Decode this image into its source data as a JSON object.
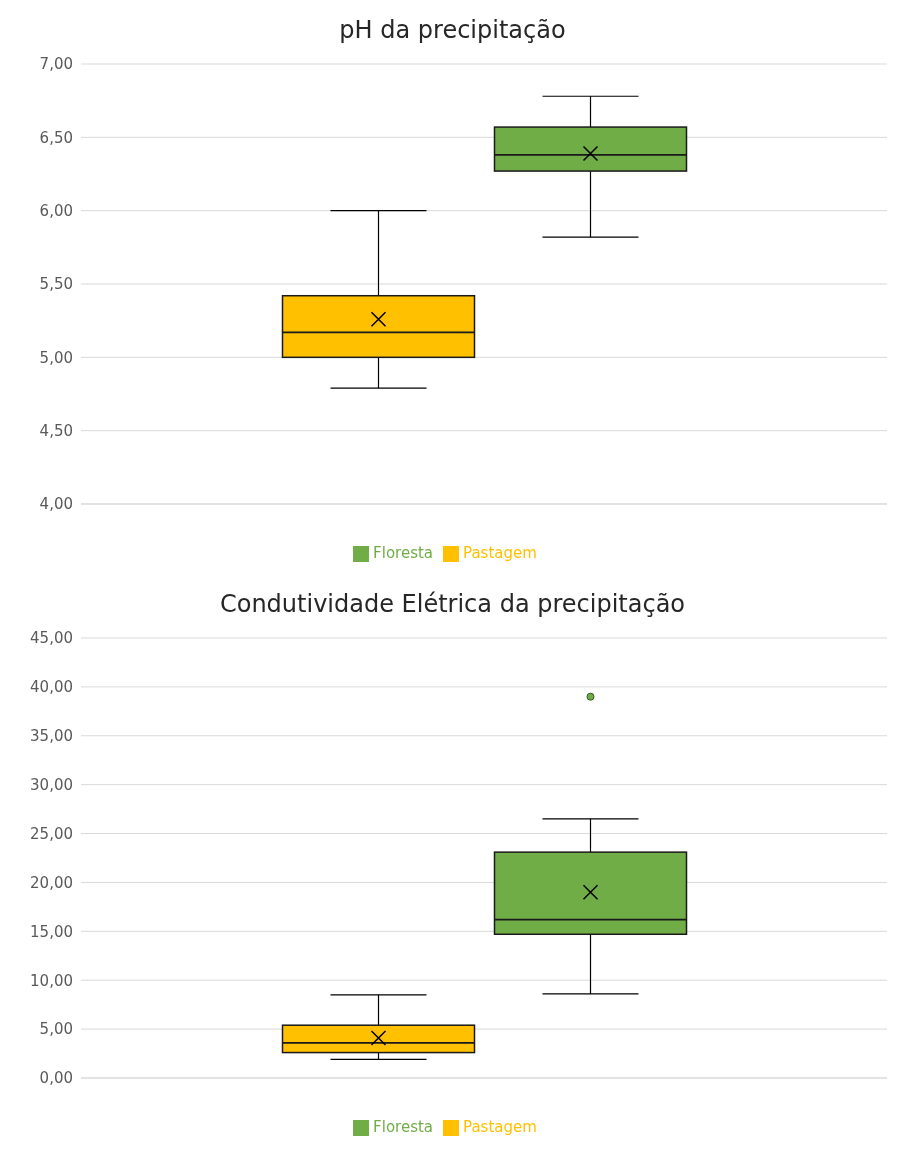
{
  "chart_data": [
    {
      "type": "box",
      "title": "pH da precipitação",
      "categories": [
        null
      ],
      "ylim": [
        4,
        7
      ],
      "yticks": [
        {
          "value": 4,
          "label": "4,00"
        },
        {
          "value": 4.5,
          "label": "4,50"
        },
        {
          "value": 5,
          "label": "5,00"
        },
        {
          "value": 5.5,
          "label": "5,50"
        },
        {
          "value": 6,
          "label": "6,00"
        },
        {
          "value": 6.5,
          "label": "6,50"
        },
        {
          "value": 7,
          "label": "7,00"
        }
      ],
      "grid": "y",
      "legend": "bottom",
      "series": [
        {
          "name": "Pastagem",
          "color": "#ffc000",
          "boxes": [
            {
              "low": 4.79,
              "q1": 5.0,
              "median": 5.17,
              "q3": 5.42,
              "high": 6.0,
              "mean": 5.26
            }
          ]
        },
        {
          "name": "Floresta",
          "color": "#70ad47",
          "boxes": [
            {
              "low": 5.82,
              "q1": 6.27,
              "median": 6.38,
              "q3": 6.57,
              "high": 6.78,
              "mean": 6.39
            }
          ]
        }
      ]
    },
    {
      "type": "box",
      "title": "Condutividade Elétrica da precipitação",
      "categories": [
        null
      ],
      "ylim": [
        0,
        45
      ],
      "yticks": [
        {
          "value": 0,
          "label": "0,00"
        },
        {
          "value": 5,
          "label": "5,00"
        },
        {
          "value": 10,
          "label": "10,00"
        },
        {
          "value": 15,
          "label": "15,00"
        },
        {
          "value": 20,
          "label": "20,00"
        },
        {
          "value": 25,
          "label": "25,00"
        },
        {
          "value": 30,
          "label": "30,00"
        },
        {
          "value": 35,
          "label": "35,00"
        },
        {
          "value": 40,
          "label": "40,00"
        },
        {
          "value": 45,
          "label": "45,00"
        }
      ],
      "grid": "y",
      "legend": "bottom",
      "series": [
        {
          "name": "Pastagem",
          "color": "#ffc000",
          "boxes": [
            {
              "low": 1.9,
              "q1": 2.6,
              "median": 3.6,
              "q3": 5.4,
              "high": 8.5,
              "mean": 4.1
            }
          ]
        },
        {
          "name": "Floresta",
          "color": "#70ad47",
          "boxes": [
            {
              "low": 8.6,
              "q1": 14.7,
              "median": 16.2,
              "q3": 23.1,
              "high": 26.5,
              "mean": 19.0,
              "outliers": [
                39.0
              ]
            }
          ]
        }
      ]
    }
  ]
}
